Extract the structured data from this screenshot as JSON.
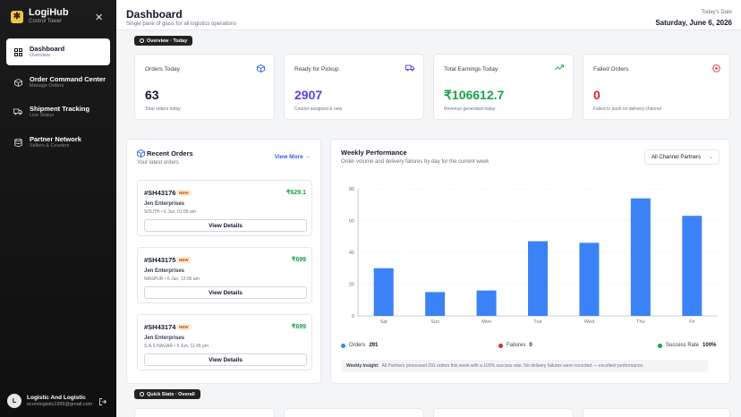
{
  "sidebar": {
    "brand": {
      "title": "LogiHub",
      "subtitle": "Control Tower"
    },
    "items": [
      {
        "label": "Dashboard",
        "sub": "Overview"
      },
      {
        "label": "Order Command Center",
        "sub": "Manage Orders"
      },
      {
        "label": "Shipment Tracking",
        "sub": "Live Status"
      },
      {
        "label": "Partner Network",
        "sub": "Sellers & Couriers"
      }
    ],
    "user": {
      "initial": "L",
      "name": "Logistic And Logistic",
      "email": "ecomlogistic1999@gmail.com"
    }
  },
  "header": {
    "title": "Dashboard",
    "subtitle": "Single pane of glass for all logistics operations",
    "date_label": "Today's Date",
    "date": "Saturday, June 6, 2026"
  },
  "overview_pill": "Overview · Today",
  "quick_stats_pill": "Quick Stats · Overall",
  "stats": [
    {
      "title": "Orders Today",
      "value": "63",
      "desc": "Total orders today",
      "icon": "box-icon",
      "color": "#111827",
      "icon_color": "#2563eb"
    },
    {
      "title": "Ready for Pickup",
      "value": "2907",
      "desc": "Courier assigned & new",
      "icon": "truck-icon",
      "color": "#4f46e5",
      "icon_color": "#4f46e5"
    },
    {
      "title": "Total Earnings Today",
      "value": "₹106612.7",
      "desc": "Revenue generated today",
      "icon": "trend-up-icon",
      "color": "#16a34a",
      "icon_color": "#16a34a"
    },
    {
      "title": "Failed Orders",
      "value": "0",
      "desc": "Failed to push on delivery channel",
      "icon": "alert-icon",
      "color": "#dc2626",
      "icon_color": "#dc2626"
    }
  ],
  "recent_orders": {
    "title": "Recent Orders",
    "subtitle": "Your latest orders",
    "view_more": "View More →",
    "orders": [
      {
        "id": "#SH43176",
        "badge": "NEW",
        "amount": "₹629.1",
        "customer": "Jen Enterprises",
        "meta": "SOUTH • 6 Jun, 01:05 am",
        "button": "View Details"
      },
      {
        "id": "#SH43175",
        "badge": "NEW",
        "amount": "₹699",
        "customer": "Jen Enterprises",
        "meta": "NAGPUR • 6 Jun, 12:06 am",
        "button": "View Details"
      },
      {
        "id": "#SH43174",
        "badge": "NEW",
        "amount": "₹699",
        "customer": "Jen Enterprises",
        "meta": "S.A.S NAGAR • 5 Jun, 11:45 pm",
        "button": "View Details"
      }
    ]
  },
  "weekly": {
    "title": "Weekly Performance",
    "subtitle": "Order volume and delivery failures by day for the current week",
    "filter": "All Channel Partners",
    "legend": [
      {
        "label": "Orders",
        "value": "291",
        "color": "#3b82f6"
      },
      {
        "label": "Failures",
        "value": "0",
        "color": "#dc2626"
      },
      {
        "label": "Success Rate",
        "value": "100%",
        "color": "#16a34a"
      }
    ],
    "insight_label": "Weekly Insight:",
    "insight_text": "All Partners processed 291 orders this week with a 100% success rate. No delivery failures were recorded — excellent performance."
  },
  "chart_data": {
    "type": "bar",
    "categories": [
      "Sat",
      "Sun",
      "Mon",
      "Tue",
      "Wed",
      "Thu",
      "Fri"
    ],
    "values": [
      30,
      15,
      16,
      47,
      46,
      74,
      63
    ],
    "ylim": [
      0,
      80
    ],
    "yticks": [
      0,
      20,
      40,
      60,
      80
    ],
    "grid": true,
    "color": "#3b82f6"
  }
}
